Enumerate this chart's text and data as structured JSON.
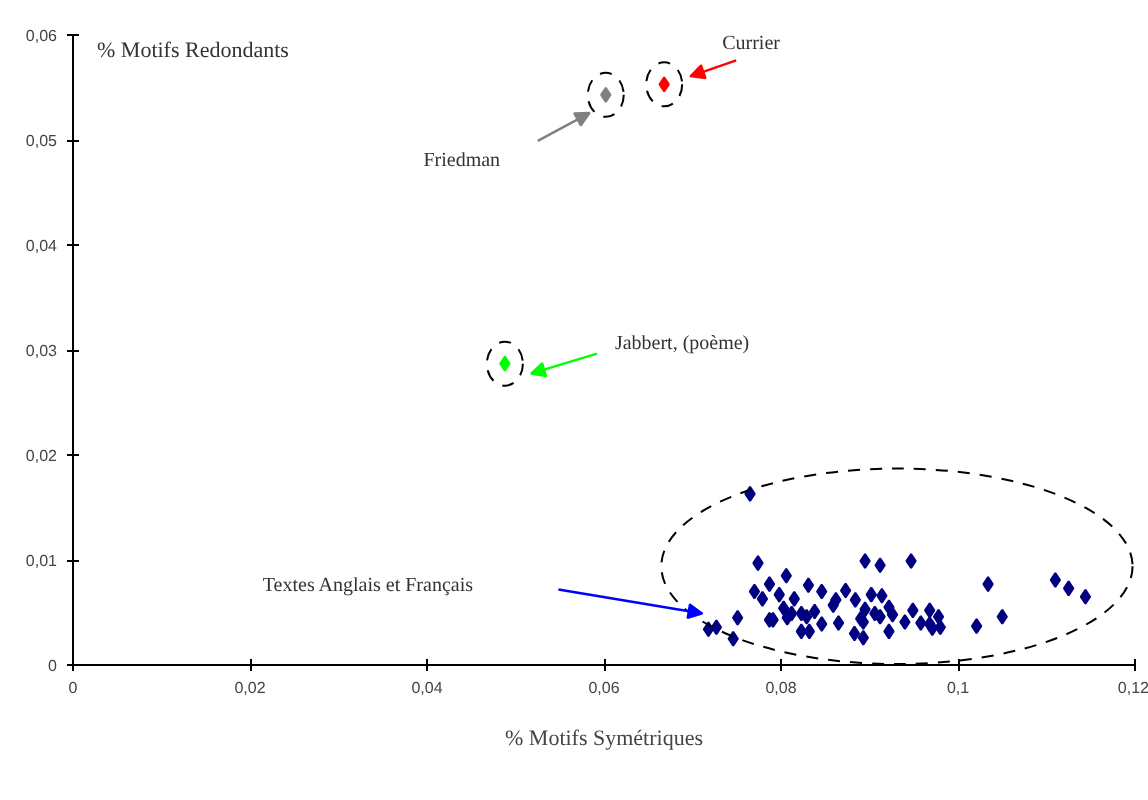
{
  "chart_data": {
    "type": "scatter",
    "xlabel": "% Motifs Symétriques",
    "ylabel": "% Motifs Redondants",
    "xlim": [
      0,
      0.12
    ],
    "ylim": [
      0,
      0.06
    ],
    "xticks": [
      {
        "value": 0,
        "label": "0"
      },
      {
        "value": 0.02,
        "label": "0,02"
      },
      {
        "value": 0.04,
        "label": "0,04"
      },
      {
        "value": 0.06,
        "label": "0,06"
      },
      {
        "value": 0.08,
        "label": "0,08"
      },
      {
        "value": 0.1,
        "label": "0,1"
      },
      {
        "value": 0.12,
        "label": "0,12"
      }
    ],
    "yticks": [
      {
        "value": 0,
        "label": "0"
      },
      {
        "value": 0.01,
        "label": "0,01"
      },
      {
        "value": 0.02,
        "label": "0,02"
      },
      {
        "value": 0.03,
        "label": "0,03"
      },
      {
        "value": 0.04,
        "label": "0,04"
      },
      {
        "value": 0.05,
        "label": "0,05"
      },
      {
        "value": 0.06,
        "label": "0,06"
      }
    ],
    "grid": false,
    "marker": "diamond",
    "series": [
      {
        "color": "#000080",
        "x": [
          0.0765,
          0.0774,
          0.0895,
          0.0912,
          0.0947,
          0.0806,
          0.0787,
          0.0831,
          0.1034,
          0.111,
          0.1125,
          0.1144,
          0.077,
          0.0779,
          0.0798,
          0.0815,
          0.0846,
          0.0873,
          0.0862,
          0.0884,
          0.0902,
          0.0914,
          0.0803,
          0.0859,
          0.0895,
          0.0922,
          0.0949,
          0.0968,
          0.0812,
          0.0823,
          0.0829,
          0.0807,
          0.0906,
          0.0912,
          0.0926,
          0.089,
          0.0978,
          0.105,
          0.0787,
          0.0791,
          0.0751,
          0.0865,
          0.0846,
          0.0893,
          0.094,
          0.0958,
          0.0968,
          0.098,
          0.0971,
          0.1021,
          0.0727,
          0.0718,
          0.0823,
          0.0832,
          0.0922,
          0.0883,
          0.0893,
          0.0746,
          0.0838
        ],
        "values": [
          0.0163,
          0.0097,
          0.0099,
          0.0095,
          0.0099,
          0.0085,
          0.0077,
          0.0076,
          0.0077,
          0.0081,
          0.0073,
          0.0065,
          0.007,
          0.0063,
          0.0067,
          0.0063,
          0.007,
          0.0071,
          0.0062,
          0.0062,
          0.0067,
          0.0066,
          0.0054,
          0.0057,
          0.0053,
          0.0055,
          0.0052,
          0.0052,
          0.0049,
          0.0049,
          0.0046,
          0.0045,
          0.0049,
          0.0046,
          0.0048,
          0.0044,
          0.0046,
          0.0046,
          0.0043,
          0.0043,
          0.0045,
          0.004,
          0.0039,
          0.0041,
          0.0041,
          0.004,
          0.0039,
          0.0036,
          0.0035,
          0.0037,
          0.0036,
          0.0034,
          0.0032,
          0.0032,
          0.0032,
          0.003,
          0.0026,
          0.0025,
          0.0051
        ]
      },
      {
        "color": "#808080",
        "x": [
          0.0602
        ],
        "values": [
          0.0543
        ]
      },
      {
        "color": "#ff0000",
        "x": [
          0.0668
        ],
        "values": [
          0.0553
        ]
      },
      {
        "color": "#00ff00",
        "x": [
          0.0488
        ],
        "values": [
          0.0287
        ]
      }
    ],
    "annotations": [
      "Currier",
      "Friedman",
      "Jabbert, (poème)",
      "Textes Anglais et Français"
    ]
  }
}
